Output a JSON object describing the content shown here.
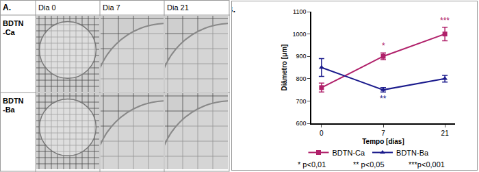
{
  "panel_a": {
    "label": "A.",
    "columns": [
      "Dia 0",
      "Dia 7",
      "Dia 21"
    ],
    "rows": [
      [
        "BDTN",
        "-Ca"
      ],
      [
        "BDTN",
        "-Ba"
      ]
    ]
  },
  "chart_data": {
    "panel_label": "B.",
    "type": "line",
    "x_label": "Tempo [dias]",
    "y_label": "Diâmetro [μm]",
    "categories": [
      "0",
      "7",
      "21"
    ],
    "series": [
      {
        "name": "BDTN-Ca",
        "color": "#b0206a",
        "marker": "square",
        "values": [
          760,
          900,
          1000
        ],
        "errors": [
          20,
          15,
          30
        ],
        "significance": [
          null,
          "*",
          "***"
        ]
      },
      {
        "name": "BDTN-Ba",
        "color": "#1a1a8c",
        "marker": "triangle-up",
        "values": [
          850,
          750,
          800
        ],
        "errors": [
          40,
          10,
          15
        ],
        "significance": [
          null,
          "**",
          null
        ]
      }
    ],
    "ylim": [
      600,
      1100
    ],
    "yticks": [
      600,
      700,
      800,
      900,
      1000,
      1100
    ],
    "grid": false,
    "legend": "bottom",
    "annotations": [
      "* p<0,01",
      "** p<0,05",
      "***p<0,001"
    ]
  }
}
